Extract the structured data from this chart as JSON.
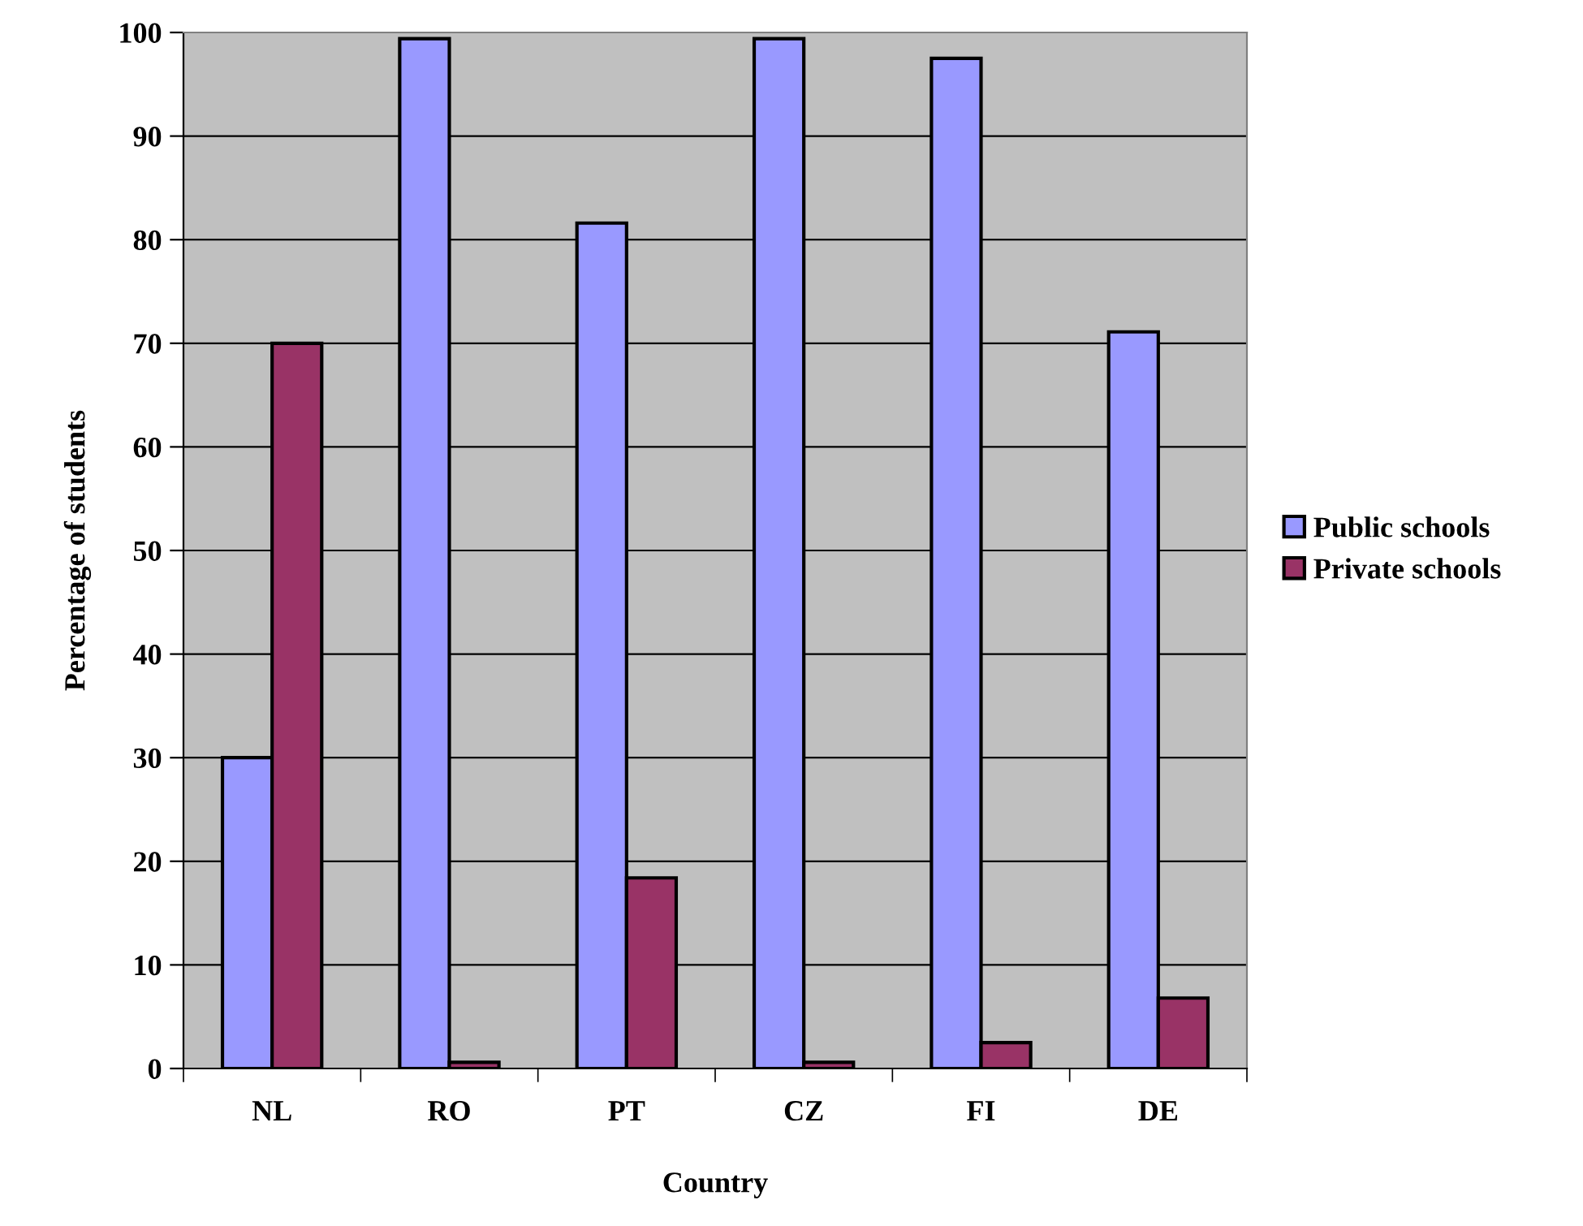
{
  "chart_data": {
    "type": "bar",
    "xlabel": "Country",
    "ylabel": "Percentage of students",
    "categories": [
      "NL",
      "RO",
      "PT",
      "CZ",
      "FI",
      "DE"
    ],
    "series": [
      {
        "name": "Public schools",
        "color": "#9999ff",
        "values": [
          30,
          99.4,
          81.6,
          99.4,
          97.5,
          71.1
        ]
      },
      {
        "name": "Private schools",
        "color": "#993366",
        "values": [
          70,
          0.6,
          18.4,
          0.6,
          2.5,
          6.8
        ]
      }
    ],
    "ylim": [
      0,
      100
    ],
    "yticks": [
      0,
      10,
      20,
      30,
      40,
      50,
      60,
      70,
      80,
      90,
      100
    ],
    "grid": "y",
    "legend": "right"
  }
}
